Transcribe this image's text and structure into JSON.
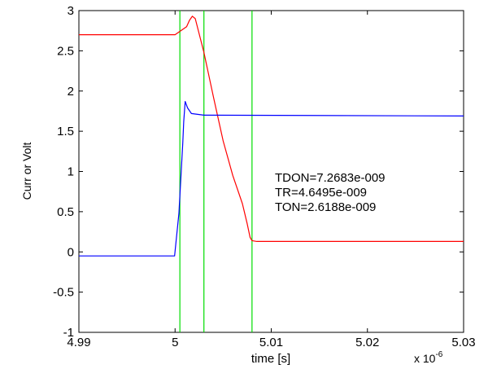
{
  "chart_data": {
    "type": "line",
    "xlabel": "time [s]",
    "ylabel": "Curr or Volt",
    "x_exponent_label": "x 10",
    "x_exponent_power": "-6",
    "xlim": [
      4.99,
      5.03
    ],
    "ylim": [
      -1,
      3
    ],
    "xticks": [
      4.99,
      5.0,
      5.01,
      5.02,
      5.03
    ],
    "xtick_labels": [
      "4.99",
      "5",
      "5.01",
      "5.02",
      "5.03"
    ],
    "yticks": [
      -1,
      -0.5,
      0,
      0.5,
      1,
      1.5,
      2,
      2.5,
      3
    ],
    "ytick_labels": [
      "-1",
      "-0.5",
      "0",
      "0.5",
      "1",
      "1.5",
      "2",
      "2.5",
      "3"
    ],
    "grid": false,
    "series": [
      {
        "color": "#ff0000",
        "x": [
          4.99,
          5.0,
          5.0012,
          5.0015,
          5.0018,
          5.0021,
          5.003,
          5.004,
          5.005,
          5.006,
          5.007,
          5.0075,
          5.0078,
          5.008,
          5.0085,
          5.03
        ],
        "y": [
          2.7,
          2.7,
          2.8,
          2.88,
          2.93,
          2.9,
          2.48,
          1.92,
          1.38,
          0.95,
          0.6,
          0.35,
          0.18,
          0.14,
          0.13,
          0.13
        ]
      },
      {
        "color": "#0000ff",
        "x": [
          4.99,
          4.99995,
          5.0004,
          5.0008,
          5.0009,
          5.00105,
          5.0013,
          5.0017,
          5.003,
          5.03
        ],
        "y": [
          -0.05,
          -0.05,
          0.48,
          1.35,
          1.62,
          1.87,
          1.79,
          1.72,
          1.7,
          1.69
        ]
      }
    ],
    "vertical_markers": [
      {
        "x": 5.0005,
        "color": "#00dd00"
      },
      {
        "x": 5.003,
        "color": "#00dd00"
      },
      {
        "x": 5.008,
        "color": "#00dd00"
      }
    ],
    "annotations": [
      "TDON=7.2683e-009",
      "TR=4.6495e-009",
      "TON=2.6188e-009"
    ]
  }
}
